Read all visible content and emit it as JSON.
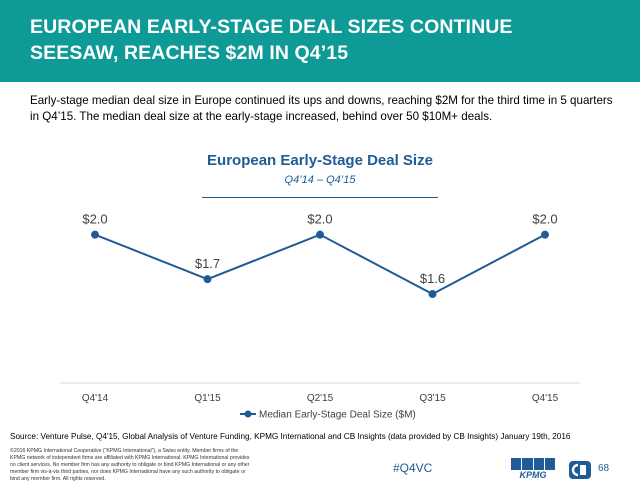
{
  "header": {
    "title_line1": "EUROPEAN EARLY-STAGE DEAL SIZES CONTINUE",
    "title_line2": "SEESAW, REACHES $2M IN Q4’15",
    "color": "#0e9a96"
  },
  "intro": {
    "text": "Early-stage median deal size in Europe continued its ups and downs, reaching $2M for the third time in 5 quarters in Q4’15. The median deal size at the early-stage increased, behind over 50 $10M+ deals."
  },
  "chart_data": {
    "type": "line",
    "title": "European Early-Stage Deal Size",
    "subtitle": "Q4’14 – Q4’15",
    "categories": [
      "Q4'14",
      "Q1'15",
      "Q2'15",
      "Q3'15",
      "Q4'15"
    ],
    "series": [
      {
        "name": "Median Early-Stage Deal Size ($M)",
        "values": [
          2.0,
          1.7,
          2.0,
          1.6,
          2.0
        ],
        "labels": [
          "$2.0",
          "$1.7",
          "$2.0",
          "$1.6",
          "$2.0"
        ],
        "color": "#1f5b96"
      }
    ],
    "legend": "bottom",
    "grid": false
  },
  "footer": {
    "source": "Source: Venture Pulse, Q4'15, Global Analysis of Venture Funding, KPMG International and CB Insights (data provided by CB Insights) January 19th, 2016",
    "disclaimer": "©2016 KPMG International Cooperative (“KPMG International”), a Swiss entity. Member firms of the KPMG network of independent firms are affiliated with KPMG International. KPMG International provides no client services. No member firm has any authority to obligate or bind KPMG International or any other member firm vis-à-vis third parties, nor does KPMG International have any such authority to obligate or bind any member firm. All rights reserved.",
    "hashtag": "#Q4VC",
    "kpmg_logo_text": "KPMG",
    "cb_logo_text": "CB",
    "page_number": "68"
  }
}
